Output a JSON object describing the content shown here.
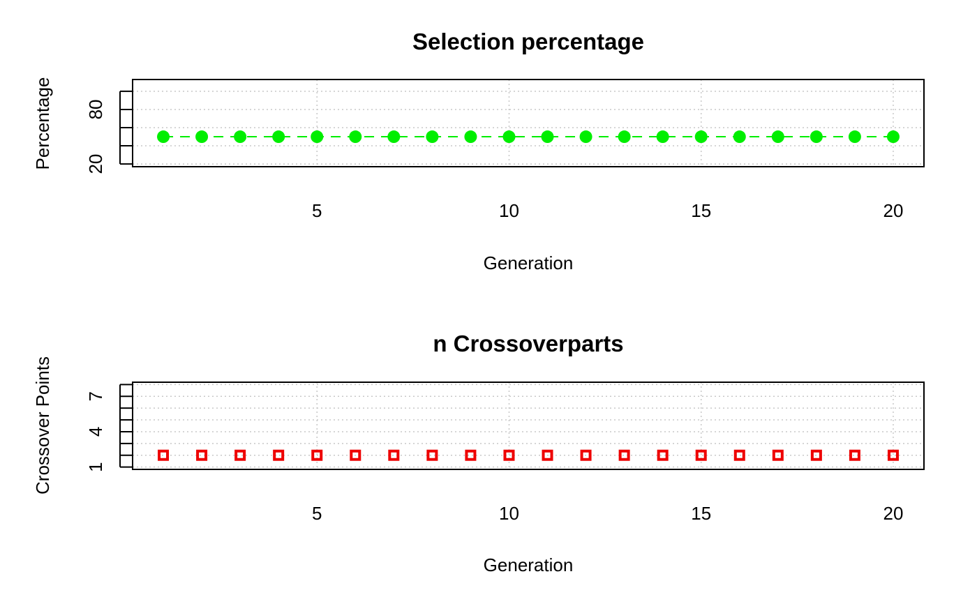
{
  "chart_data": [
    {
      "type": "line",
      "title": "Selection percentage",
      "xlabel": "Generation",
      "ylabel": "Percentage",
      "xlim": [
        0.2,
        20.8
      ],
      "ylim": [
        17,
        113
      ],
      "x_ticks": [
        5,
        10,
        15,
        20
      ],
      "y_ticks": [
        20,
        40,
        60,
        80,
        100
      ],
      "y_tick_labels": [
        "20",
        "",
        "",
        "80",
        ""
      ],
      "grid": true,
      "line_style": "dashed",
      "marker": "circle",
      "color": "#00EE00",
      "series": [
        {
          "x": [
            1,
            2,
            3,
            4,
            5,
            6,
            7,
            8,
            9,
            10,
            11,
            12,
            13,
            14,
            15,
            16,
            17,
            18,
            19,
            20
          ],
          "values": [
            50,
            50,
            50,
            50,
            50,
            50,
            50,
            50,
            50,
            50,
            50,
            50,
            50,
            50,
            50,
            50,
            50,
            50,
            50,
            50
          ]
        }
      ]
    },
    {
      "type": "scatter",
      "title": "n Crossoverparts",
      "xlabel": "Generation",
      "ylabel": "Crossover Points",
      "xlim": [
        0.2,
        20.8
      ],
      "ylim": [
        0.8,
        8.2
      ],
      "x_ticks": [
        5,
        10,
        15,
        20
      ],
      "y_ticks": [
        1,
        2,
        3,
        4,
        5,
        6,
        7,
        8
      ],
      "y_tick_labels": [
        "1",
        "",
        "",
        "4",
        "",
        "",
        "7",
        ""
      ],
      "grid": true,
      "marker": "square",
      "color": "#EE0000",
      "series": [
        {
          "x": [
            1,
            2,
            3,
            4,
            5,
            6,
            7,
            8,
            9,
            10,
            11,
            12,
            13,
            14,
            15,
            16,
            17,
            18,
            19,
            20
          ],
          "values": [
            2,
            2,
            2,
            2,
            2,
            2,
            2,
            2,
            2,
            2,
            2,
            2,
            2,
            2,
            2,
            2,
            2,
            2,
            2,
            2
          ]
        }
      ]
    }
  ]
}
